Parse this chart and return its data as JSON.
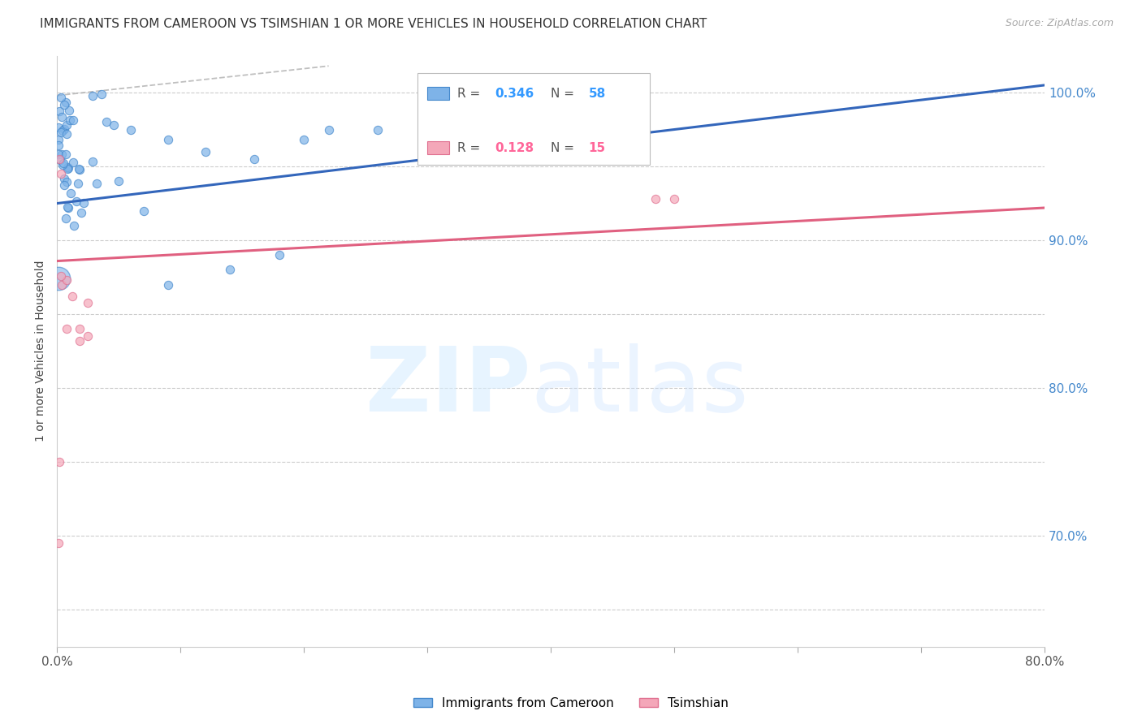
{
  "title": "IMMIGRANTS FROM CAMEROON VS TSIMSHIAN 1 OR MORE VEHICLES IN HOUSEHOLD CORRELATION CHART",
  "source": "Source: ZipAtlas.com",
  "ylabel": "1 or more Vehicles in Household",
  "xlim": [
    0.0,
    0.8
  ],
  "ylim": [
    0.625,
    1.025
  ],
  "blue_R": 0.346,
  "blue_N": 58,
  "pink_R": 0.128,
  "pink_N": 15,
  "legend_label_blue": "Immigrants from Cameroon",
  "legend_label_pink": "Tsimshian",
  "blue_fill": "#7EB3E8",
  "pink_fill": "#F4A7B9",
  "blue_edge": "#4488CC",
  "pink_edge": "#E07090",
  "blue_line": "#3366BB",
  "pink_line": "#E06080",
  "blue_R_color": "#3399FF",
  "pink_R_color": "#FF6699",
  "blue_N_color": "#3399FF",
  "pink_N_color": "#FF6699",
  "grid_color": "#CCCCCC",
  "y_ticks": [
    0.7,
    0.8,
    0.9,
    1.0
  ],
  "y_tick_labels": [
    "70.0%",
    "80.0%",
    "90.0%",
    "100.0%"
  ]
}
